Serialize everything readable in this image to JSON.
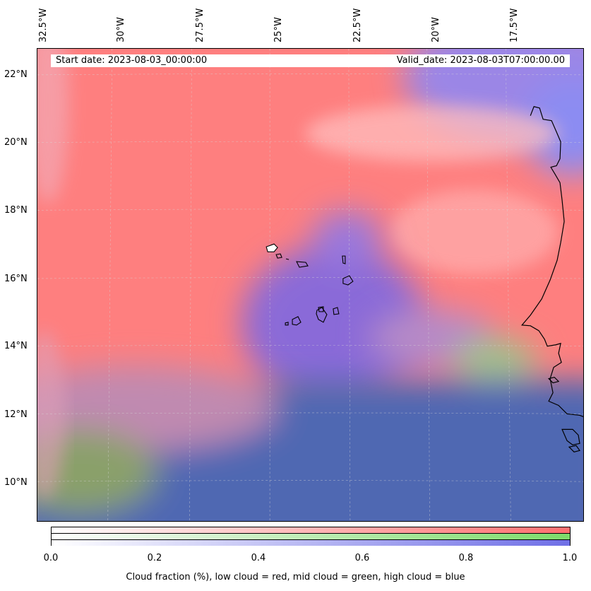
{
  "info": {
    "start_date": "Start date: 2023-08-03_00:00:00",
    "valid_date": "Valid_date: 2023-08-03T07:00:00.00"
  },
  "lon_labels": [
    "32.5°W",
    "30°W",
    "27.5°W",
    "25°W",
    "22.5°W",
    "20°W",
    "17.5°W"
  ],
  "lat_labels": [
    "22°N",
    "20°N",
    "18°N",
    "16°N",
    "14°N",
    "12°N",
    "10°N"
  ],
  "colorbar": {
    "ticks": [
      "0.0",
      "0.2",
      "0.4",
      "0.6",
      "0.8",
      "1.0"
    ],
    "label": "Cloud fraction (%), low cloud = red, mid cloud = green, high cloud = blue",
    "colors": {
      "low": "#ff6f6f",
      "mid": "#7ddc6a",
      "high": "#6f6fe6"
    }
  }
}
